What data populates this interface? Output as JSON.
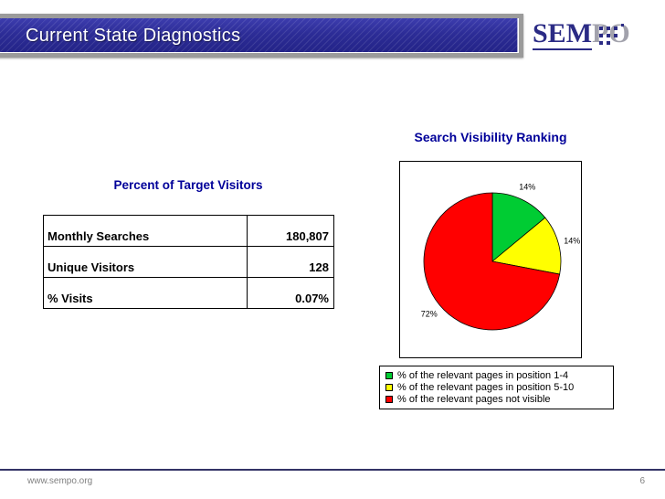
{
  "header": {
    "title": "Current State Diagnostics"
  },
  "logo": {
    "sem": "SEM",
    "po": "PO"
  },
  "visitors_panel": {
    "title": "Percent of Target Visitors",
    "table": {
      "rows": [
        {
          "label": "Monthly Searches",
          "value": "180,807"
        },
        {
          "label": "Unique Visitors",
          "value": "128"
        },
        {
          "label": "% Visits",
          "value": "0.07%"
        }
      ]
    }
  },
  "chart_data": {
    "type": "pie",
    "title": "Search Visibility Ranking",
    "labels": [
      "% of the relevant pages in position 1-4",
      "% of the relevant pages in position 5-10",
      "% of the relevant pages not visible"
    ],
    "values": [
      14,
      14,
      72
    ],
    "value_labels": [
      "14%",
      "14%",
      "72%"
    ],
    "colors": [
      "#00CC33",
      "#FFFF00",
      "#FF0000"
    ],
    "start_angle_deg": 0,
    "direction": "clockwise",
    "legend_position": "bottom"
  },
  "footer": {
    "url": "www.sempo.org",
    "page_number": "6"
  }
}
